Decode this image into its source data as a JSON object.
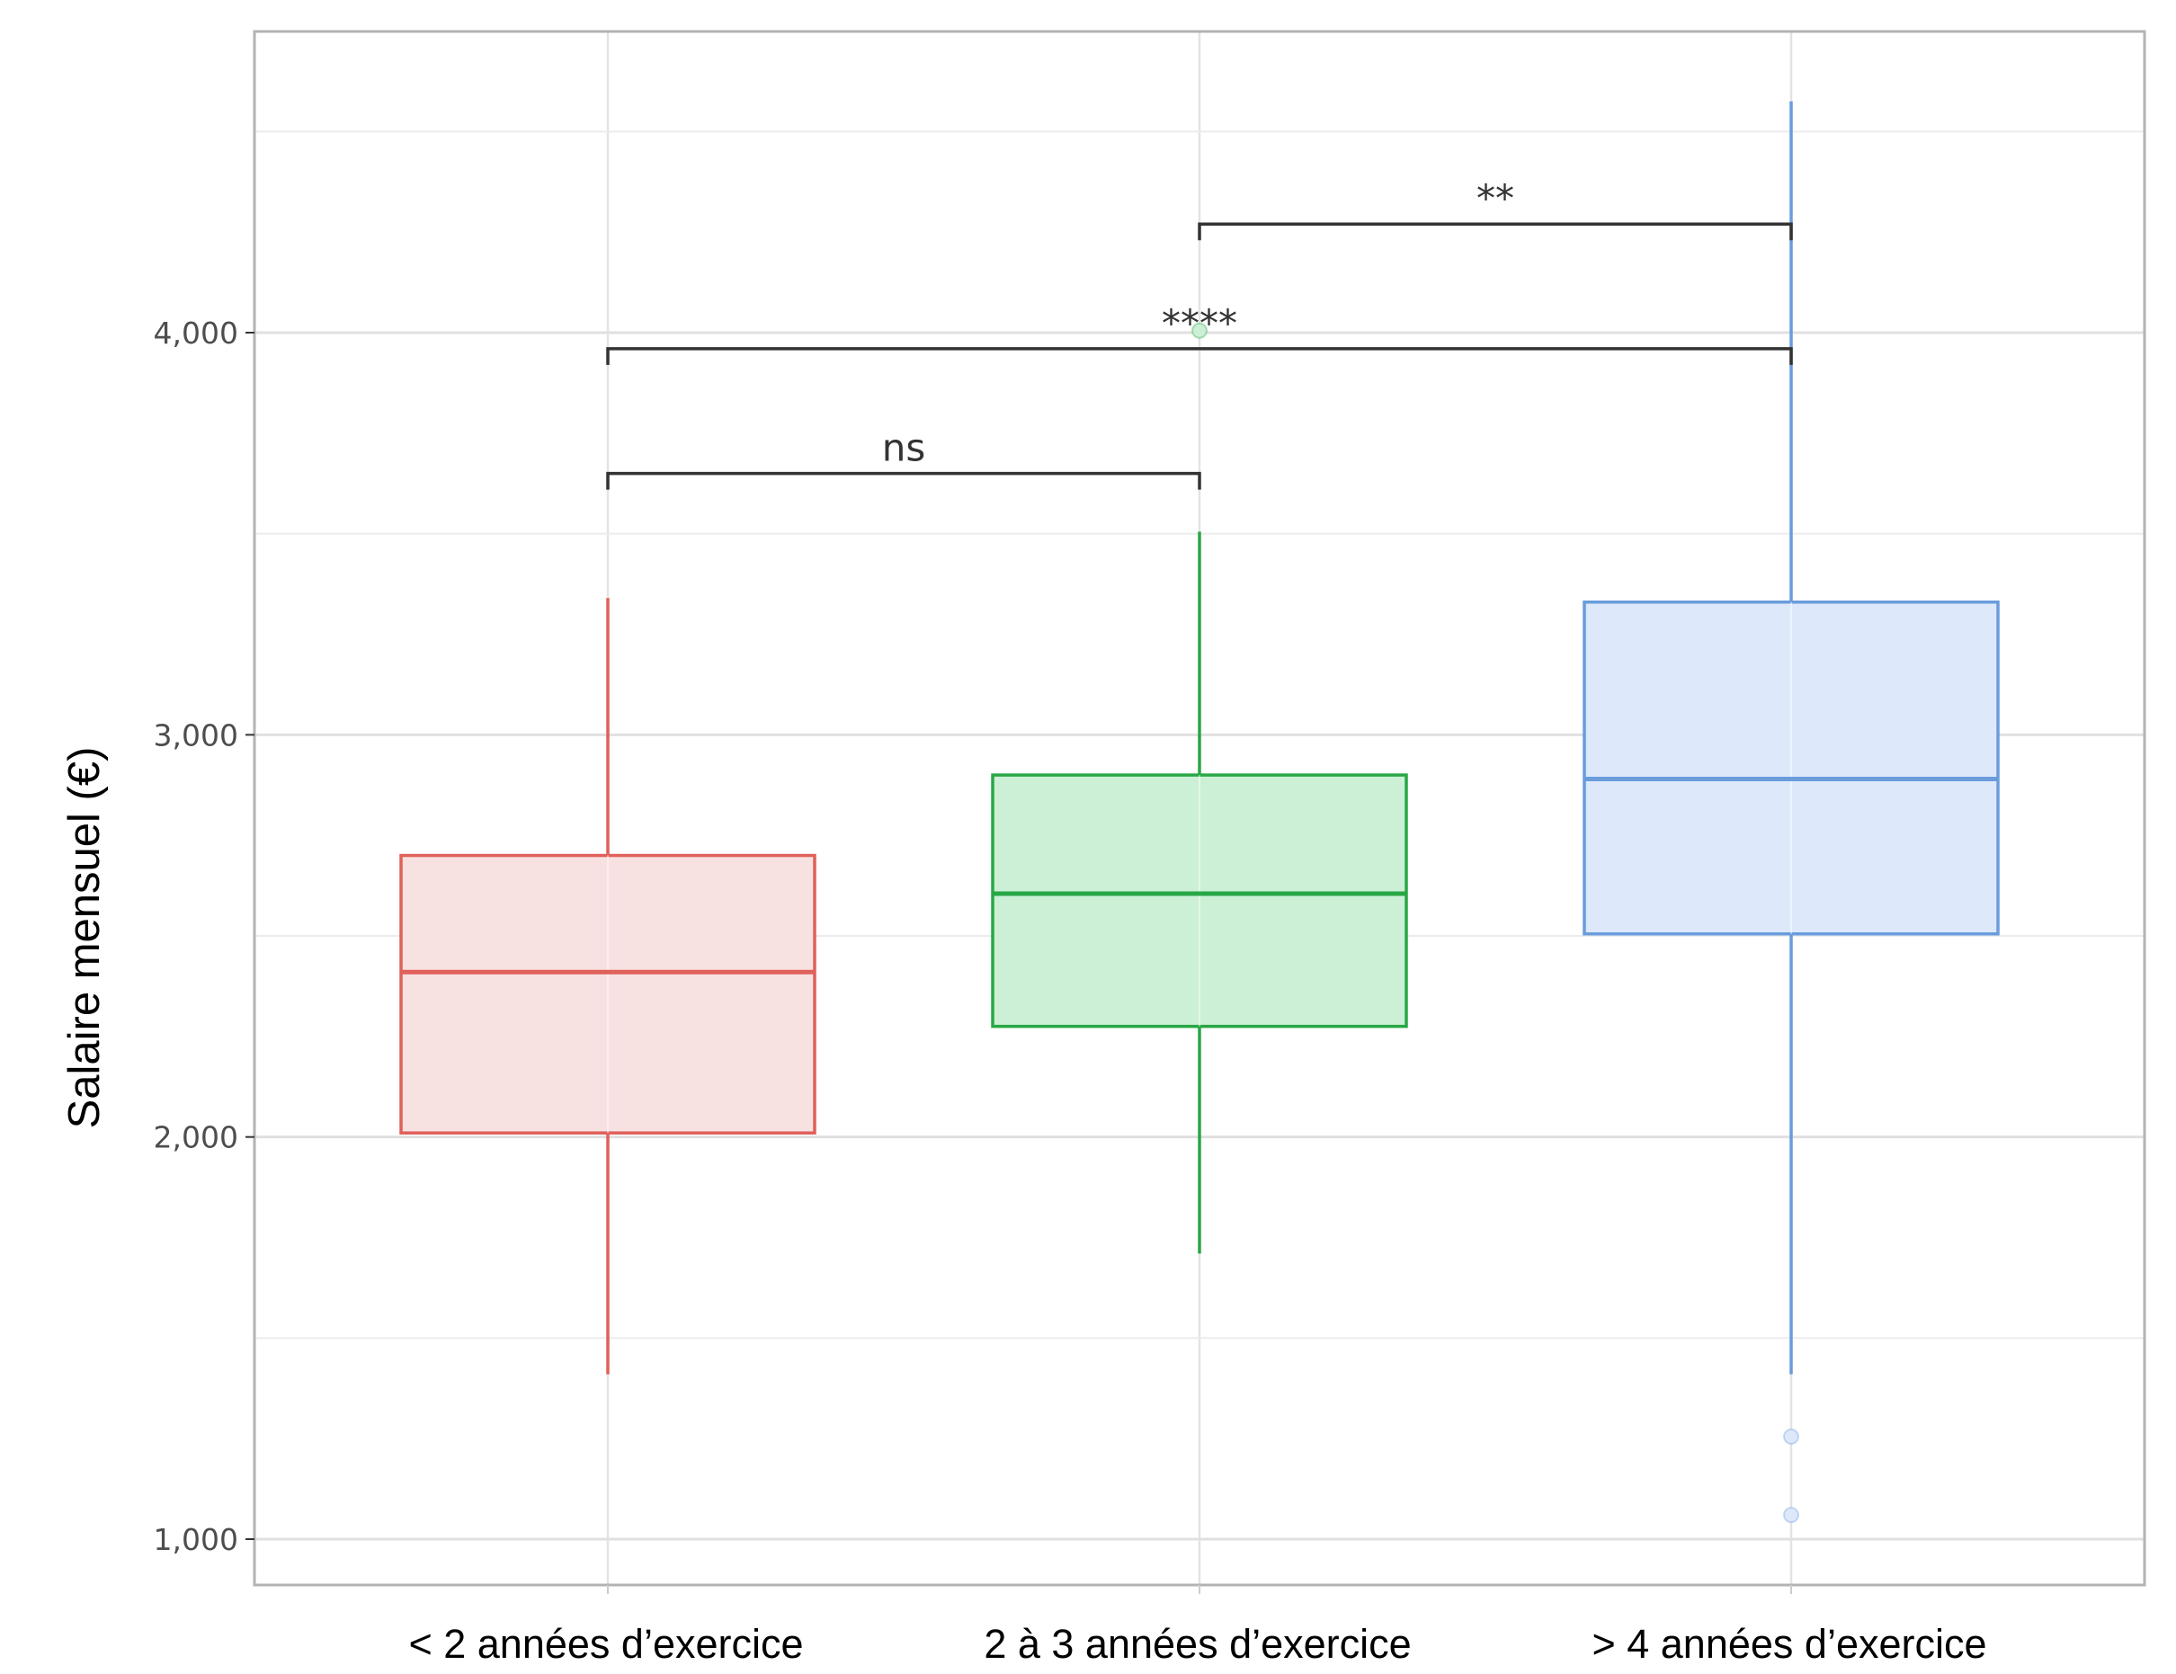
{
  "chart_data": {
    "type": "boxplot",
    "title": "",
    "xlabel": "",
    "ylabel": "Salaire mensuel (€)",
    "ylim": [
      880,
      4740
    ],
    "y_ticks": [
      1000,
      2000,
      3000,
      4000
    ],
    "y_tick_labels": [
      "1,000",
      "2,000",
      "3,000",
      "4,000"
    ],
    "y_minor_gridlines": [
      1500,
      2500,
      3500,
      4500
    ],
    "grid": true,
    "legend": "none",
    "categories": [
      "< 2 années d’exercice",
      "2 à 3 années d’exercice",
      "> 4 années d’exercice"
    ],
    "series": [
      {
        "category": "< 2 années d’exercice",
        "color": "#e0605a",
        "fill": "#f8e1e1",
        "whisker_low": 1410,
        "q1": 2010,
        "median": 2410,
        "q3": 2700,
        "whisker_high": 3340,
        "outliers": []
      },
      {
        "category": "2 à 3 années d’exercice",
        "color": "#28a745",
        "fill": "#ccf0d6",
        "whisker_low": 1710,
        "q1": 2275,
        "median": 2605,
        "q3": 2900,
        "whisker_high": 3505,
        "outliers": [
          4005
        ]
      },
      {
        "category": "> 4 années d’exercice",
        "color": "#6a9cdc",
        "fill": "#dde9fb",
        "whisker_low": 1410,
        "q1": 2505,
        "median": 2890,
        "q3": 3330,
        "whisker_high": 4575,
        "outliers": [
          1255,
          1060
        ]
      }
    ],
    "comparisons": [
      {
        "from": 0,
        "to": 1,
        "label": "ns",
        "y": 3650
      },
      {
        "from": 0,
        "to": 2,
        "label": "****",
        "y": 3960
      },
      {
        "from": 1,
        "to": 2,
        "label": "**",
        "y": 4270
      }
    ]
  }
}
